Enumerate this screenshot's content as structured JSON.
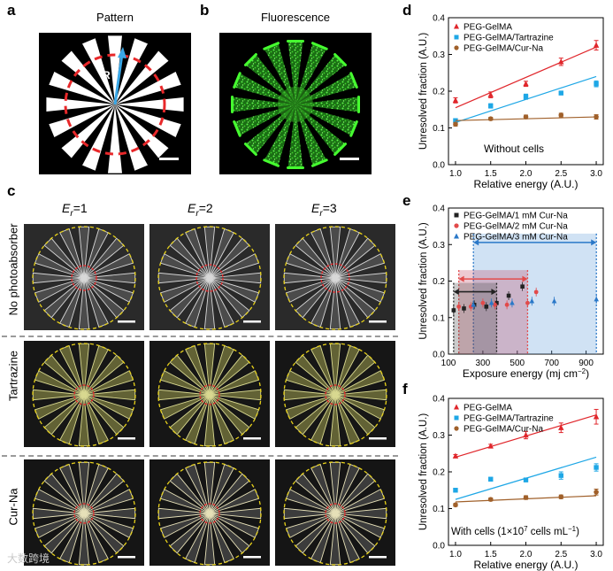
{
  "panels": {
    "a": {
      "label": "a",
      "title": "Pattern",
      "radius_label": "R"
    },
    "b": {
      "label": "b",
      "title": "Fluorescence"
    },
    "c": {
      "label": "c",
      "col_headers": [
        {
          "prefix": "E",
          "sub": "r",
          "suffix": "=1"
        },
        {
          "prefix": "E",
          "sub": "r",
          "suffix": "=2"
        },
        {
          "prefix": "E",
          "sub": "r",
          "suffix": "=3"
        }
      ],
      "row_labels": [
        "No photoabsorber",
        "Tartrazine",
        "Cur-Na"
      ]
    },
    "d": {
      "label": "d",
      "annotation": "Without cells"
    },
    "e": {
      "label": "e"
    },
    "f": {
      "label": "f",
      "annotation_pre": "With cells (1×10",
      "annotation_sup1": "7",
      "annotation_mid": " cells mL",
      "annotation_sup2": "−1",
      "annotation_post": ")"
    }
  },
  "colors": {
    "red": "#e0262b",
    "blue": "#1ea7e6",
    "brown": "#a0602a",
    "black": "#222222",
    "e_red": "#e24a4a",
    "e_blue": "#2a78c8",
    "yellow_circle": "#e8d21a",
    "red_circle": "#e8282a",
    "green": "#3ad22a"
  },
  "watermark": "大数跨境",
  "chart_data": [
    {
      "id": "d",
      "type": "line",
      "xlabel": "Relative energy (A.U.)",
      "ylabel": "Unresolved fraction (A.U.)",
      "xlim": [
        0.9,
        3.1
      ],
      "ylim": [
        0.0,
        0.4
      ],
      "xticks": [
        1.0,
        1.5,
        2.0,
        2.5,
        3.0
      ],
      "yticks": [
        0.0,
        0.1,
        0.2,
        0.3,
        0.4
      ],
      "xtick_labels": [
        "1.0",
        "1.5",
        "2.0",
        "2.5",
        "3.0"
      ],
      "ytick_labels": [
        "0.0",
        "0.1",
        "0.2",
        "0.3",
        "0.4"
      ],
      "legend_position": "top-left",
      "x": [
        1.0,
        1.5,
        2.0,
        2.5,
        3.0
      ],
      "series": [
        {
          "name": "PEG-GelMA",
          "color": "#e0262b",
          "marker": "triangle",
          "values": [
            0.175,
            0.19,
            0.22,
            0.28,
            0.325
          ],
          "errors": [
            0.007,
            0.008,
            0.007,
            0.01,
            0.013
          ],
          "fit": [
            0.155,
            0.32
          ]
        },
        {
          "name": "PEG-GelMA/Tartrazine",
          "color": "#1ea7e6",
          "marker": "square",
          "values": [
            0.12,
            0.16,
            0.185,
            0.195,
            0.22
          ],
          "errors": [
            0.005,
            0.006,
            0.007,
            0.005,
            0.008
          ],
          "fit": [
            0.115,
            0.24
          ]
        },
        {
          "name": "PEG-GelMA/Cur-Na",
          "color": "#a0602a",
          "marker": "circle",
          "values": [
            0.11,
            0.125,
            0.13,
            0.135,
            0.13
          ],
          "errors": [
            0.005,
            0.004,
            0.005,
            0.005,
            0.006
          ],
          "fit": [
            0.12,
            0.13
          ]
        }
      ]
    },
    {
      "id": "e",
      "type": "scatter",
      "xlabel_pre": "Exposure energy (mj cm",
      "xlabel_sup": "−2",
      "xlabel_post": ")",
      "ylabel": "Unresolved fraction (A.U.)",
      "xlim": [
        100,
        1000
      ],
      "ylim": [
        0.0,
        0.4
      ],
      "xticks": [
        100,
        300,
        500,
        700,
        900
      ],
      "yticks": [
        0.0,
        0.1,
        0.2,
        0.3,
        0.4
      ],
      "xtick_labels": [
        "100",
        "300",
        "500",
        "700",
        "900"
      ],
      "ytick_labels": [
        "0.0",
        "0.1",
        "0.2",
        "0.3",
        "0.4"
      ],
      "legend_position": "top-left",
      "series": [
        {
          "name": "PEG-GelMA/1 mM Cur-Na",
          "color": "#222222",
          "marker": "square",
          "x": [
            130,
            190,
            250,
            320,
            380,
            450,
            530
          ],
          "y": [
            0.12,
            0.125,
            0.135,
            0.13,
            0.14,
            0.16,
            0.185
          ],
          "range": [
            130,
            380
          ],
          "range_y": 0.195
        },
        {
          "name": "PEG-GelMA/2 mM Cur-Na",
          "color": "#e24a4a",
          "marker": "circle",
          "x": [
            160,
            230,
            300,
            370,
            440,
            560,
            610
          ],
          "y": [
            0.13,
            0.13,
            0.14,
            0.135,
            0.135,
            0.14,
            0.17
          ],
          "range": [
            160,
            560
          ],
          "range_y": 0.23
        },
        {
          "name": "PEG-GelMA/3 mM Cur-Na",
          "color": "#2a78c8",
          "marker": "triangle",
          "x": [
            245,
            350,
            470,
            585,
            715,
            960
          ],
          "y": [
            0.135,
            0.14,
            0.14,
            0.145,
            0.145,
            0.15
          ],
          "range": [
            245,
            960
          ],
          "range_y": 0.33
        }
      ]
    },
    {
      "id": "f",
      "type": "line",
      "xlabel": "Relative energy (A.U.)",
      "ylabel": "Unresolved fraction (A.U.)",
      "xlim": [
        0.9,
        3.1
      ],
      "ylim": [
        0.0,
        0.4
      ],
      "xticks": [
        1.0,
        1.5,
        2.0,
        2.5,
        3.0
      ],
      "yticks": [
        0.0,
        0.1,
        0.2,
        0.3,
        0.4
      ],
      "xtick_labels": [
        "1.0",
        "1.5",
        "2.0",
        "2.5",
        "3.0"
      ],
      "ytick_labels": [
        "0.0",
        "0.1",
        "0.2",
        "0.3",
        "0.4"
      ],
      "legend_position": "top-left",
      "x": [
        1.0,
        1.5,
        2.0,
        2.5,
        3.0
      ],
      "series": [
        {
          "name": "PEG-GelMA",
          "color": "#e0262b",
          "marker": "triangle",
          "values": [
            0.243,
            0.27,
            0.3,
            0.32,
            0.35
          ],
          "errors": [
            0.004,
            0.005,
            0.01,
            0.013,
            0.02
          ],
          "fit": [
            0.24,
            0.355
          ]
        },
        {
          "name": "PEG-GelMA/Tartrazine",
          "color": "#1ea7e6",
          "marker": "square",
          "values": [
            0.15,
            0.18,
            0.178,
            0.19,
            0.212
          ],
          "errors": [
            0.005,
            0.005,
            0.005,
            0.01,
            0.01
          ],
          "fit": [
            0.125,
            0.24
          ]
        },
        {
          "name": "PEG-GelMA/Cur-Na",
          "color": "#a0602a",
          "marker": "circle",
          "values": [
            0.11,
            0.125,
            0.13,
            0.132,
            0.145
          ],
          "errors": [
            0.004,
            0.004,
            0.005,
            0.005,
            0.008
          ],
          "fit": [
            0.118,
            0.135
          ]
        }
      ]
    }
  ]
}
